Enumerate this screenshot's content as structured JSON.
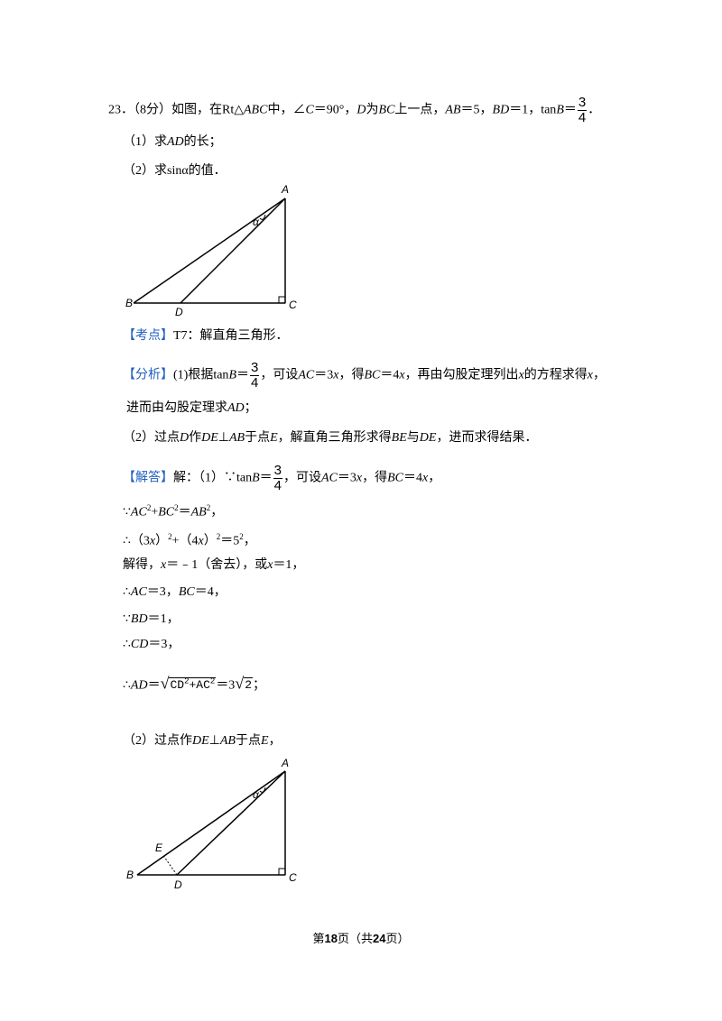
{
  "question": {
    "lines": [
      [
        "23．（8分）如图，在Rt△",
        "ABC",
        "中，∠",
        "C",
        "＝90°，",
        "D",
        "为",
        "BC",
        "上一点，",
        "AB",
        "＝5，",
        "BD",
        "＝1，tan",
        "B",
        "＝",
        "3",
        "4",
        "．"
      ],
      [
        "（1）求",
        "AD",
        "的长；"
      ],
      [
        "（2）求sinα的值．"
      ]
    ]
  },
  "figure1": {
    "labels": [
      "A",
      "α",
      "B",
      "D",
      "C"
    ]
  },
  "solution": {
    "lines": [
      [
        "【考点】",
        "T7：解直角三角形．"
      ],
      [
        "【分析】",
        "(1)根据tan",
        "B",
        "＝",
        "3",
        "4",
        "，可设",
        "AC",
        "＝3",
        "x",
        "，得",
        "BC",
        "＝4",
        "x",
        "，再由勾股定理列出",
        "x",
        "的方程求得",
        "x",
        "，"
      ],
      [
        "进而由勾股定理求",
        "AD",
        "；"
      ],
      [
        "（2）过点",
        "D",
        "作",
        "DE",
        "⊥",
        "AB",
        "于点",
        "E",
        "，解直角三角形求得",
        "BE",
        "与",
        "DE",
        "，进而求得结果．"
      ],
      [
        "【解答】",
        "解：（1）∵tan",
        "B",
        "＝",
        "3",
        "4",
        "，可设",
        "AC",
        "＝3",
        "x",
        "，得",
        "BC",
        "＝4",
        "x",
        "，"
      ],
      [
        "∵",
        "AC",
        "2",
        "+",
        "BC",
        "2",
        "＝",
        "AB",
        "2",
        "，"
      ],
      [
        "∴（3",
        "x",
        "）",
        "2",
        "+（4",
        "x",
        "）",
        "2",
        "＝5",
        "2",
        "，"
      ],
      [
        "解得，",
        "x",
        "＝﹣1（舍去），或",
        "x",
        "＝1，"
      ],
      [
        "∴",
        "AC",
        "＝3，",
        "BC",
        "＝4，"
      ],
      [
        "∵",
        "BD",
        "＝1，"
      ],
      [
        "∴",
        "CD",
        "＝3，"
      ],
      [
        "∴",
        "AD",
        "＝",
        "CD",
        "2",
        "+AC",
        "2",
        "＝3",
        "2",
        "；"
      ],
      [
        "（2）过点作",
        "DE",
        "⊥",
        "AB",
        "于点",
        "E",
        "，"
      ]
    ]
  },
  "figure2": {
    "labels": [
      "A",
      "α",
      "E",
      "B",
      "D",
      "C"
    ]
  },
  "footer": [
    "第",
    "18",
    "页（共",
    "24",
    "页）"
  ]
}
